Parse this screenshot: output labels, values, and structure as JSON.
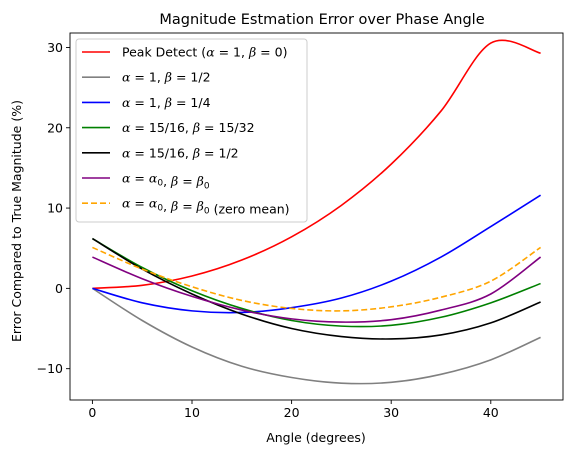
{
  "chart_data": {
    "type": "line",
    "title": "Magnitude Estmation Error over Phase Angle",
    "xlabel": "Angle (degrees)",
    "ylabel": "Error Compared to True Magnitude (%)",
    "xlim": [
      -2.25,
      47.25
    ],
    "ylim": [
      -13.9,
      31.8
    ],
    "xticks": [
      0,
      10,
      20,
      30,
      40
    ],
    "yticks": [
      -10,
      0,
      10,
      20,
      30
    ],
    "xtick_labels": [
      "0",
      "10",
      "20",
      "30",
      "40"
    ],
    "ytick_labels": [
      "−10",
      "0",
      "10",
      "20",
      "30"
    ],
    "grid": false,
    "legend_position": "upper-left",
    "x": [
      0,
      5,
      10,
      15,
      20,
      25,
      30,
      35,
      40,
      45
    ],
    "series": [
      {
        "name": "Peak Detect (α = 1, β = 0)",
        "label_parts": [
          [
            "Peak Detect (",
            ""
          ],
          [
            "α",
            "it"
          ],
          [
            " = 1, ",
            ""
          ],
          [
            "β",
            "it"
          ],
          [
            " = 0)",
            ""
          ]
        ],
        "color": "#ff0000",
        "dash": "solid",
        "values": [
          0.0,
          0.38,
          1.54,
          3.53,
          6.42,
          10.34,
          15.47,
          22.08,
          30.54,
          29.29
        ]
      },
      {
        "name": "α = 1, β = 1/2",
        "label_parts": [
          [
            "α",
            "it"
          ],
          [
            " = 1, ",
            ""
          ],
          [
            "β",
            "it"
          ],
          [
            " = 1/2",
            ""
          ]
        ],
        "color": "#808080",
        "dash": "solid",
        "values": [
          0.0,
          -4.0,
          -7.3,
          -9.7,
          -11.1,
          -11.8,
          -11.7,
          -10.7,
          -8.9,
          -6.1
        ]
      },
      {
        "name": "α = 1, β = 1/4",
        "label_parts": [
          [
            "α",
            "it"
          ],
          [
            " = 1, ",
            ""
          ],
          [
            "β",
            "it"
          ],
          [
            " = 1/4",
            ""
          ]
        ],
        "color": "#0000ff",
        "dash": "solid",
        "values": [
          0.0,
          -1.8,
          -2.8,
          -3.0,
          -2.4,
          -1.2,
          0.9,
          3.9,
          7.7,
          11.6
        ]
      },
      {
        "name": "α = 15/16, β = 15/32",
        "label_parts": [
          [
            "α",
            "it"
          ],
          [
            " = 15/16, ",
            ""
          ],
          [
            "β",
            "it"
          ],
          [
            " = 15/32",
            ""
          ]
        ],
        "color": "#008000",
        "dash": "solid",
        "values": [
          6.2,
          2.6,
          -0.3,
          -2.5,
          -4.0,
          -4.7,
          -4.6,
          -3.6,
          -1.8,
          0.6
        ]
      },
      {
        "name": "α = 15/16, β = 1/2",
        "label_parts": [
          [
            "α",
            "it"
          ],
          [
            " = 15/16, ",
            ""
          ],
          [
            "β",
            "it"
          ],
          [
            " = 1/2",
            ""
          ]
        ],
        "color": "#000000",
        "dash": "solid",
        "values": [
          6.2,
          2.4,
          -0.7,
          -3.2,
          -5.0,
          -6.0,
          -6.3,
          -5.8,
          -4.3,
          -1.7
        ]
      },
      {
        "name": "α = α0, β = β0",
        "label_parts": [
          [
            "α",
            "it"
          ],
          [
            " = ",
            ""
          ],
          [
            "α",
            "it"
          ],
          [
            "0",
            "sub"
          ],
          [
            ", ",
            ""
          ],
          [
            "β",
            "it"
          ],
          [
            " = ",
            ""
          ],
          [
            "β",
            "it"
          ],
          [
            "0",
            "sub"
          ]
        ],
        "color": "#800080",
        "dash": "solid",
        "values": [
          3.9,
          1.2,
          -1.0,
          -2.7,
          -3.8,
          -4.2,
          -3.9,
          -2.7,
          -0.7,
          3.9
        ]
      },
      {
        "name": "α = α0, β = β0 (zero mean)",
        "label_parts": [
          [
            "α",
            "it"
          ],
          [
            " = ",
            ""
          ],
          [
            "α",
            "it"
          ],
          [
            "0",
            "sub"
          ],
          [
            ", ",
            ""
          ],
          [
            "β",
            "it"
          ],
          [
            " = ",
            ""
          ],
          [
            "β",
            "it"
          ],
          [
            "0",
            "sub"
          ],
          [
            " (zero mean)",
            ""
          ]
        ],
        "color": "#ffa500",
        "dash": "dashed",
        "values": [
          5.1,
          2.4,
          0.2,
          -1.5,
          -2.5,
          -2.8,
          -2.3,
          -1.1,
          0.9,
          5.1
        ]
      }
    ]
  }
}
